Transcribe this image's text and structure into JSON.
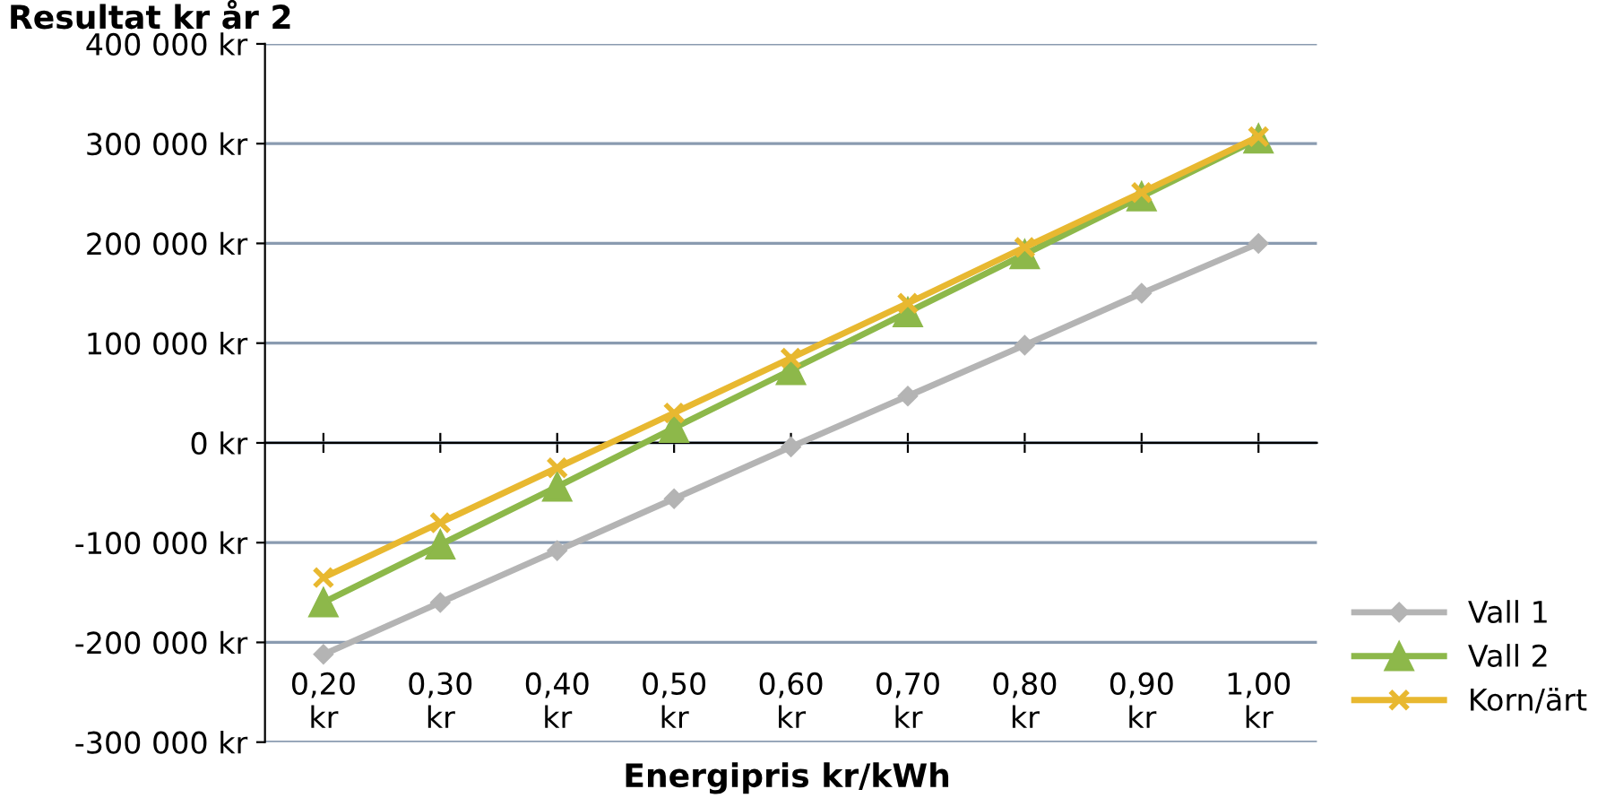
{
  "chart_data": {
    "type": "line",
    "title": "Resultat kr år 2",
    "xlabel": "Energipris kr/kWh",
    "categories": [
      "0,20 kr",
      "0,30 kr",
      "0,40 kr",
      "0,50 kr",
      "0,60 kr",
      "0,70 kr",
      "0,80 kr",
      "0,90 kr",
      "1,00 kr"
    ],
    "series": [
      {
        "name": "Vall 1",
        "color": "#b4b4b4",
        "marker": "diamond",
        "values": [
          -212000,
          -160000,
          -108000,
          -56000,
          -4000,
          47000,
          98000,
          150000,
          200000
        ]
      },
      {
        "name": "Vall 2",
        "color": "#8db84a",
        "marker": "triangle",
        "values": [
          -160000,
          -102000,
          -44000,
          15000,
          73000,
          131000,
          189000,
          247000,
          305000
        ]
      },
      {
        "name": "Korn/ärt",
        "color": "#e8b830",
        "marker": "cross",
        "values": [
          -135000,
          -80000,
          -25000,
          30000,
          85000,
          140000,
          196000,
          251000,
          307000
        ]
      }
    ],
    "ylim": [
      -300000,
      400000
    ],
    "yticks": [
      {
        "value": -300000,
        "label": "-300 000 kr"
      },
      {
        "value": -200000,
        "label": "-200 000 kr"
      },
      {
        "value": -100000,
        "label": "-100 000 kr"
      },
      {
        "value": 0,
        "label": "0 kr"
      },
      {
        "value": 100000,
        "label": "100 000 kr"
      },
      {
        "value": 200000,
        "label": "200 000 kr"
      },
      {
        "value": 300000,
        "label": "300 000 kr"
      },
      {
        "value": 400000,
        "label": "400 000 kr"
      }
    ],
    "grid": "y",
    "legend": "right",
    "line_style": "solid"
  }
}
